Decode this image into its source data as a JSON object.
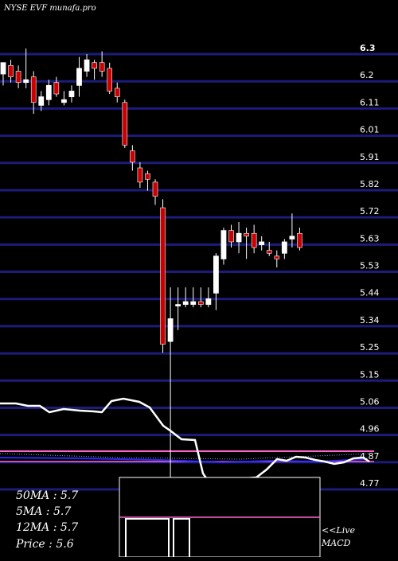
{
  "chart_data": {
    "type": "candlestick",
    "title": "NYSE EVF munafa.pro",
    "y_ticks": [
      "6.3",
      "6.2",
      "6.11",
      "6.01",
      "5.91",
      "5.82",
      "5.72",
      "5.63",
      "5.53",
      "5.44",
      "5.34",
      "5.25",
      "5.15",
      "5.06",
      "4.96",
      "4.87",
      "4.77"
    ],
    "ylim": [
      4.77,
      6.3
    ],
    "grid": true,
    "candles": [
      {
        "o": 6.23,
        "h": 6.27,
        "l": 6.19,
        "c": 6.27
      },
      {
        "o": 6.26,
        "h": 6.28,
        "l": 6.2,
        "c": 6.22
      },
      {
        "o": 6.24,
        "h": 6.26,
        "l": 6.18,
        "c": 6.2
      },
      {
        "o": 6.2,
        "h": 6.32,
        "l": 6.18,
        "c": 6.21
      },
      {
        "o": 6.22,
        "h": 6.24,
        "l": 6.09,
        "c": 6.13
      },
      {
        "o": 6.12,
        "h": 6.17,
        "l": 6.1,
        "c": 6.15
      },
      {
        "o": 6.14,
        "h": 6.21,
        "l": 6.12,
        "c": 6.19
      },
      {
        "o": 6.2,
        "h": 6.22,
        "l": 6.15,
        "c": 6.16
      },
      {
        "o": 6.13,
        "h": 6.17,
        "l": 6.12,
        "c": 6.14
      },
      {
        "o": 6.15,
        "h": 6.19,
        "l": 6.13,
        "c": 6.17
      },
      {
        "o": 6.19,
        "h": 6.29,
        "l": 6.15,
        "c": 6.25
      },
      {
        "o": 6.24,
        "h": 6.3,
        "l": 6.22,
        "c": 6.28
      },
      {
        "o": 6.27,
        "h": 6.28,
        "l": 6.21,
        "c": 6.25
      },
      {
        "o": 6.27,
        "h": 6.31,
        "l": 6.22,
        "c": 6.24
      },
      {
        "o": 6.25,
        "h": 6.27,
        "l": 6.16,
        "c": 6.17
      },
      {
        "o": 6.18,
        "h": 6.2,
        "l": 6.13,
        "c": 6.15
      },
      {
        "o": 6.13,
        "h": 6.14,
        "l": 5.97,
        "c": 5.98
      },
      {
        "o": 5.96,
        "h": 5.98,
        "l": 5.89,
        "c": 5.92
      },
      {
        "o": 5.9,
        "h": 5.92,
        "l": 5.83,
        "c": 5.85
      },
      {
        "o": 5.88,
        "h": 5.89,
        "l": 5.82,
        "c": 5.86
      },
      {
        "o": 5.85,
        "h": 5.86,
        "l": 5.77,
        "c": 5.8
      },
      {
        "o": 5.76,
        "h": 5.79,
        "l": 5.25,
        "c": 5.28
      },
      {
        "o": 5.29,
        "h": 5.48,
        "l": 4.77,
        "c": 5.37
      },
      {
        "o": 5.42,
        "h": 5.48,
        "l": 5.33,
        "c": 5.42
      },
      {
        "o": 5.42,
        "h": 5.48,
        "l": 5.41,
        "c": 5.43
      },
      {
        "o": 5.42,
        "h": 5.48,
        "l": 5.41,
        "c": 5.43
      },
      {
        "o": 5.43,
        "h": 5.48,
        "l": 5.41,
        "c": 5.42
      },
      {
        "o": 5.42,
        "h": 5.48,
        "l": 5.41,
        "c": 5.44
      },
      {
        "o": 5.46,
        "h": 5.6,
        "l": 5.4,
        "c": 5.59
      },
      {
        "o": 5.58,
        "h": 5.69,
        "l": 5.56,
        "c": 5.68
      },
      {
        "o": 5.68,
        "h": 5.7,
        "l": 5.62,
        "c": 5.64
      },
      {
        "o": 5.64,
        "h": 5.71,
        "l": 5.6,
        "c": 5.67
      },
      {
        "o": 5.67,
        "h": 5.69,
        "l": 5.58,
        "c": 5.66
      },
      {
        "o": 5.67,
        "h": 5.7,
        "l": 5.6,
        "c": 5.62
      },
      {
        "o": 5.63,
        "h": 5.66,
        "l": 5.61,
        "c": 5.64
      },
      {
        "o": 5.61,
        "h": 5.64,
        "l": 5.59,
        "c": 5.6
      },
      {
        "o": 5.59,
        "h": 5.61,
        "l": 5.55,
        "c": 5.58
      },
      {
        "o": 5.6,
        "h": 5.65,
        "l": 5.58,
        "c": 5.64
      },
      {
        "o": 5.65,
        "h": 5.74,
        "l": 5.62,
        "c": 5.66
      },
      {
        "o": 5.67,
        "h": 5.69,
        "l": 5.61,
        "c": 5.62
      }
    ]
  },
  "info": {
    "ma50": "50MA : 5.7",
    "ma5": "5MA : 5.7",
    "ma12": "12MA : 5.7",
    "price": "Price   : 5.6",
    "live": "<<Live",
    "macd": "MACD"
  },
  "colors": {
    "background": "#000000",
    "grid": "#1c1c7a",
    "bullish": "#ffffff",
    "bearish": "#cc0000",
    "indicator_line": "#ffffff",
    "pink_line": "#ff66cc",
    "blue_line": "#2a2aee"
  }
}
